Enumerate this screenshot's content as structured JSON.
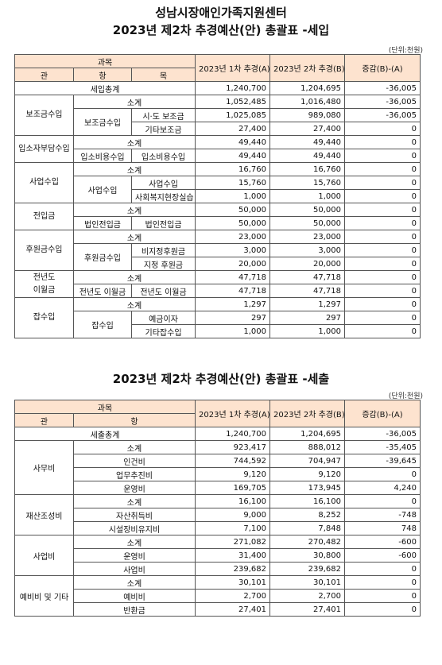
{
  "doc": {
    "org_title": "성남시장애인가족지원센터",
    "income_title": "2023년 제2차 추경예산(안) 총괄표 -세입",
    "expense_title": "2023년 제2차 추경예산(안) 총괄표 -세출",
    "unit_label": "(단위:천원)"
  },
  "income": {
    "headers": {
      "gwamok": "과목",
      "gwan": "관",
      "hang": "항",
      "mok": "목",
      "col1": "2023년 1차 추경(A)",
      "col2": "2023년 2차 추경(B)",
      "col3": "증감(B)-(A)"
    },
    "total": {
      "label": "세입총계",
      "a": "1,240,700",
      "b": "1,204,695",
      "diff": "-36,005"
    },
    "groups": [
      {
        "gwan": "보조금수입",
        "subtotal": {
          "label": "소계",
          "a": "1,052,485",
          "b": "1,016,480",
          "diff": "-36,005"
        },
        "hang_rows": [
          {
            "hang": "보조금수입",
            "moks": [
              {
                "mok": "시·도 보조금",
                "a": "1,025,085",
                "b": "989,080",
                "diff": "-36,005"
              },
              {
                "mok": "기타보조금",
                "a": "27,400",
                "b": "27,400",
                "diff": "0"
              }
            ]
          }
        ]
      },
      {
        "gwan": "입소자부담수입",
        "subtotal": {
          "label": "소계",
          "a": "49,440",
          "b": "49,440",
          "diff": "0"
        },
        "hang_rows": [
          {
            "hang": "입소비용수입",
            "moks": [
              {
                "mok": "입소비용수입",
                "a": "49,440",
                "b": "49,440",
                "diff": "0"
              }
            ]
          }
        ]
      },
      {
        "gwan": "사업수입",
        "subtotal": {
          "label": "소계",
          "a": "16,760",
          "b": "16,760",
          "diff": "0"
        },
        "hang_rows": [
          {
            "hang": "사업수입",
            "moks": [
              {
                "mok": "사업수입",
                "a": "15,760",
                "b": "15,760",
                "diff": "0"
              },
              {
                "mok": "사회복지현장실습",
                "a": "1,000",
                "b": "1,000",
                "diff": "0"
              }
            ]
          }
        ]
      },
      {
        "gwan": "전입금",
        "subtotal": {
          "label": "소계",
          "a": "50,000",
          "b": "50,000",
          "diff": "0"
        },
        "hang_rows": [
          {
            "hang": "법인전입금",
            "moks": [
              {
                "mok": "법인전입금",
                "a": "50,000",
                "b": "50,000",
                "diff": "0"
              }
            ]
          }
        ]
      },
      {
        "gwan": "후원금수입",
        "subtotal": {
          "label": "소계",
          "a": "23,000",
          "b": "23,000",
          "diff": "0"
        },
        "hang_rows": [
          {
            "hang": "후원금수입",
            "moks": [
              {
                "mok": "비지정후원금",
                "a": "3,000",
                "b": "3,000",
                "diff": "0"
              },
              {
                "mok": "지정 후원금",
                "a": "20,000",
                "b": "20,000",
                "diff": "0"
              }
            ]
          }
        ]
      },
      {
        "gwan": "전년도\n이월금",
        "subtotal": {
          "label": "소계",
          "a": "47,718",
          "b": "47,718",
          "diff": "0"
        },
        "hang_rows": [
          {
            "hang": "전년도 이월금",
            "moks": [
              {
                "mok": "전년도 이월금",
                "a": "47,718",
                "b": "47,718",
                "diff": "0"
              }
            ]
          }
        ]
      },
      {
        "gwan": "잡수입",
        "subtotal": {
          "label": "소계",
          "a": "1,297",
          "b": "1,297",
          "diff": "0"
        },
        "hang_rows": [
          {
            "hang": "잡수입",
            "moks": [
              {
                "mok": "예금이자",
                "a": "297",
                "b": "297",
                "diff": "0"
              },
              {
                "mok": "기타잡수입",
                "a": "1,000",
                "b": "1,000",
                "diff": "0"
              }
            ]
          }
        ]
      }
    ]
  },
  "expense": {
    "headers": {
      "gwamok": "과목",
      "gwan": "관",
      "hang": "항",
      "col1": "2023년 1차 추경(A)",
      "col2": "2023년 2차 추경(B)",
      "col3": "증감(B)-(A)"
    },
    "total": {
      "label": "세출총계",
      "a": "1,240,700",
      "b": "1,204,695",
      "diff": "-36,005"
    },
    "groups": [
      {
        "gwan": "사무비",
        "rows": [
          {
            "hang": "소계",
            "a": "923,417",
            "b": "888,012",
            "diff": "-35,405"
          },
          {
            "hang": "인건비",
            "a": "744,592",
            "b": "704,947",
            "diff": "-39,645"
          },
          {
            "hang": "업무추진비",
            "a": "9,120",
            "b": "9,120",
            "diff": "0"
          },
          {
            "hang": "운영비",
            "a": "169,705",
            "b": "173,945",
            "diff": "4,240"
          }
        ]
      },
      {
        "gwan": "재산조성비",
        "rows": [
          {
            "hang": "소계",
            "a": "16,100",
            "b": "16,100",
            "diff": "0"
          },
          {
            "hang": "자산취득비",
            "a": "9,000",
            "b": "8,252",
            "diff": "-748"
          },
          {
            "hang": "시설장비유지비",
            "a": "7,100",
            "b": "7,848",
            "diff": "748"
          }
        ]
      },
      {
        "gwan": "사업비",
        "rows": [
          {
            "hang": "소계",
            "a": "271,082",
            "b": "270,482",
            "diff": "-600"
          },
          {
            "hang": "운영비",
            "a": "31,400",
            "b": "30,800",
            "diff": "-600"
          },
          {
            "hang": "사업비",
            "a": "239,682",
            "b": "239,682",
            "diff": "0"
          }
        ]
      },
      {
        "gwan": "예비비 및 기타",
        "rows": [
          {
            "hang": "소계",
            "a": "30,101",
            "b": "30,101",
            "diff": "0"
          },
          {
            "hang": "예비비",
            "a": "2,700",
            "b": "2,700",
            "diff": "0"
          },
          {
            "hang": "반환금",
            "a": "27,401",
            "b": "27,401",
            "diff": "0"
          }
        ]
      }
    ]
  }
}
